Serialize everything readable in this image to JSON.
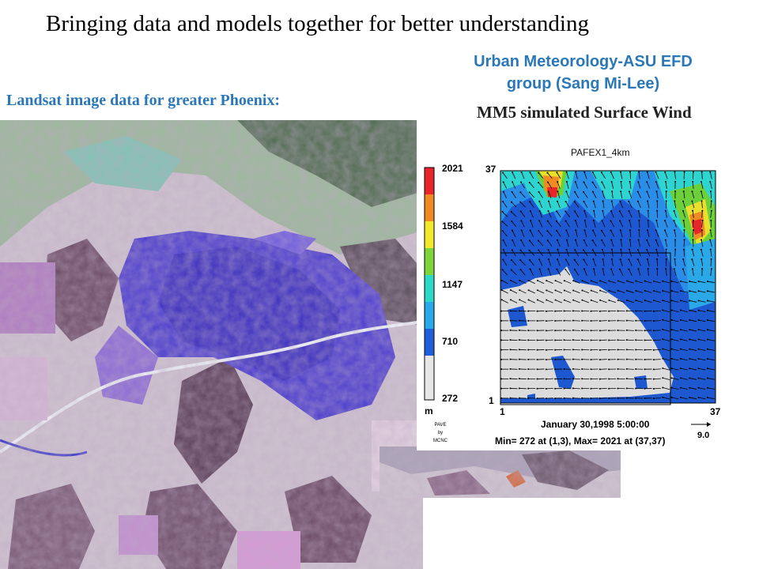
{
  "slide": {
    "title": "Bringing data and models together for better understanding",
    "group_credit_line1": "Urban Meteorology-ASU EFD",
    "group_credit_line2": "group (Sang Mi-Lee)",
    "landsat_label": "Landsat image data for greater Phoenix:"
  },
  "mm5_figure": {
    "heading": "MM5 simulated Surface Wind",
    "plot_title": "PAFEX1_4km",
    "axis": {
      "x_min": "1",
      "x_max": "37",
      "y_min": "1",
      "y_max": "37"
    },
    "legend": {
      "labels": [
        "2021",
        "1584",
        "1147",
        "710",
        "272"
      ],
      "unit": "m",
      "colors": [
        "#e8252a",
        "#f08a24",
        "#f2e92c",
        "#7ed43a",
        "#2ed8c8",
        "#2aa8e8",
        "#1c5fd8",
        "#e6e6e6"
      ]
    },
    "credit_lines": [
      "PAVE",
      "by",
      "MCNC"
    ],
    "date_line": "January 30,1998 5:00:00",
    "minmax_line": "Min=   272 at (1,3), Max=  2021 at (37,37)",
    "vector_scale": "9.0",
    "terrain_colors": {
      "low": "#dcdcdc",
      "blue_dark": "#1e58d0",
      "blue_mid": "#2a8ee8",
      "cyan": "#2ed4d0",
      "green": "#6cd03a",
      "yellow": "#e8e02c",
      "orange": "#f08a24",
      "red": "#e8252a"
    }
  }
}
